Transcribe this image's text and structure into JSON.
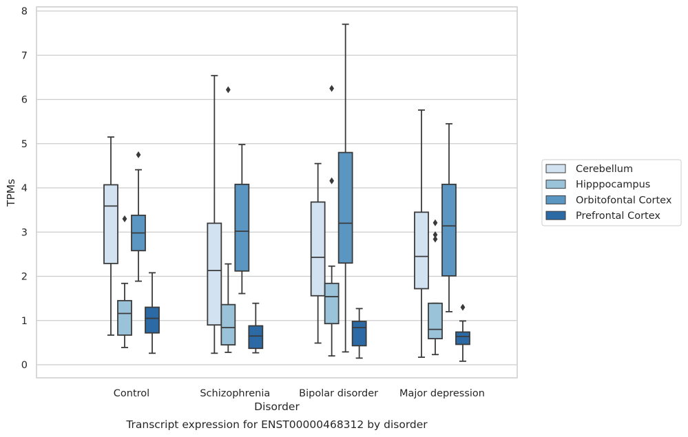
{
  "chart_data": {
    "type": "box",
    "title": "Transcript expression for ENST00000468312 by disorder",
    "xlabel": "Disorder",
    "ylabel": "TPMs",
    "ylim": [
      -0.3,
      8.1
    ],
    "yticks": [
      0,
      1,
      2,
      3,
      4,
      5,
      6,
      7,
      8
    ],
    "grid": "horizontal",
    "legend_position": "right",
    "categories": [
      "Control",
      "Schizophrenia",
      "Bipolar disorder",
      "Major depression"
    ],
    "series": [
      {
        "name": "Cerebellum",
        "color": "#d2e2f1",
        "boxes": [
          {
            "whisker_low": 0.67,
            "q1": 2.29,
            "median": 3.59,
            "q3": 4.07,
            "whisker_high": 5.15,
            "outliers": []
          },
          {
            "whisker_low": 0.26,
            "q1": 0.9,
            "median": 2.13,
            "q3": 3.2,
            "whisker_high": 6.54,
            "outliers": []
          },
          {
            "whisker_low": 0.49,
            "q1": 1.56,
            "median": 2.43,
            "q3": 3.68,
            "whisker_high": 4.55,
            "outliers": []
          },
          {
            "whisker_low": 0.17,
            "q1": 1.72,
            "median": 2.45,
            "q3": 3.45,
            "whisker_high": 5.76,
            "outliers": []
          }
        ]
      },
      {
        "name": "Hipppocampus",
        "color": "#9ac3da",
        "boxes": [
          {
            "whisker_low": 0.39,
            "q1": 0.67,
            "median": 1.16,
            "q3": 1.45,
            "whisker_high": 1.84,
            "outliers": [
              3.3
            ]
          },
          {
            "whisker_low": 0.28,
            "q1": 0.45,
            "median": 0.84,
            "q3": 1.36,
            "whisker_high": 2.28,
            "outliers": [
              6.22
            ]
          },
          {
            "whisker_low": 0.2,
            "q1": 0.93,
            "median": 1.54,
            "q3": 1.84,
            "whisker_high": 2.23,
            "outliers": [
              4.16,
              6.25
            ]
          },
          {
            "whisker_low": 0.23,
            "q1": 0.59,
            "median": 0.8,
            "q3": 1.39,
            "whisker_high": 1.39,
            "outliers": [
              2.84,
              2.94,
              3.21
            ]
          }
        ]
      },
      {
        "name": "Orbitofontal Cortex",
        "color": "#5b96c2",
        "boxes": [
          {
            "whisker_low": 1.89,
            "q1": 2.58,
            "median": 2.98,
            "q3": 3.38,
            "whisker_high": 4.41,
            "outliers": [
              4.75
            ]
          },
          {
            "whisker_low": 1.61,
            "q1": 2.12,
            "median": 3.02,
            "q3": 4.08,
            "whisker_high": 4.98,
            "outliers": []
          },
          {
            "whisker_low": 0.29,
            "q1": 2.3,
            "median": 3.2,
            "q3": 4.8,
            "whisker_high": 7.7,
            "outliers": []
          },
          {
            "whisker_low": 1.2,
            "q1": 2.01,
            "median": 3.14,
            "q3": 4.08,
            "whisker_high": 5.45,
            "outliers": []
          }
        ]
      },
      {
        "name": "Prefrontal Cortex",
        "color": "#2c6aa6",
        "boxes": [
          {
            "whisker_low": 0.26,
            "q1": 0.72,
            "median": 1.05,
            "q3": 1.3,
            "whisker_high": 2.08,
            "outliers": []
          },
          {
            "whisker_low": 0.27,
            "q1": 0.37,
            "median": 0.65,
            "q3": 0.88,
            "whisker_high": 1.39,
            "outliers": []
          },
          {
            "whisker_low": 0.15,
            "q1": 0.43,
            "median": 0.84,
            "q3": 0.98,
            "whisker_high": 1.27,
            "outliers": []
          },
          {
            "whisker_low": 0.08,
            "q1": 0.46,
            "median": 0.64,
            "q3": 0.74,
            "whisker_high": 0.99,
            "outliers": [
              1.3
            ]
          }
        ]
      }
    ]
  }
}
